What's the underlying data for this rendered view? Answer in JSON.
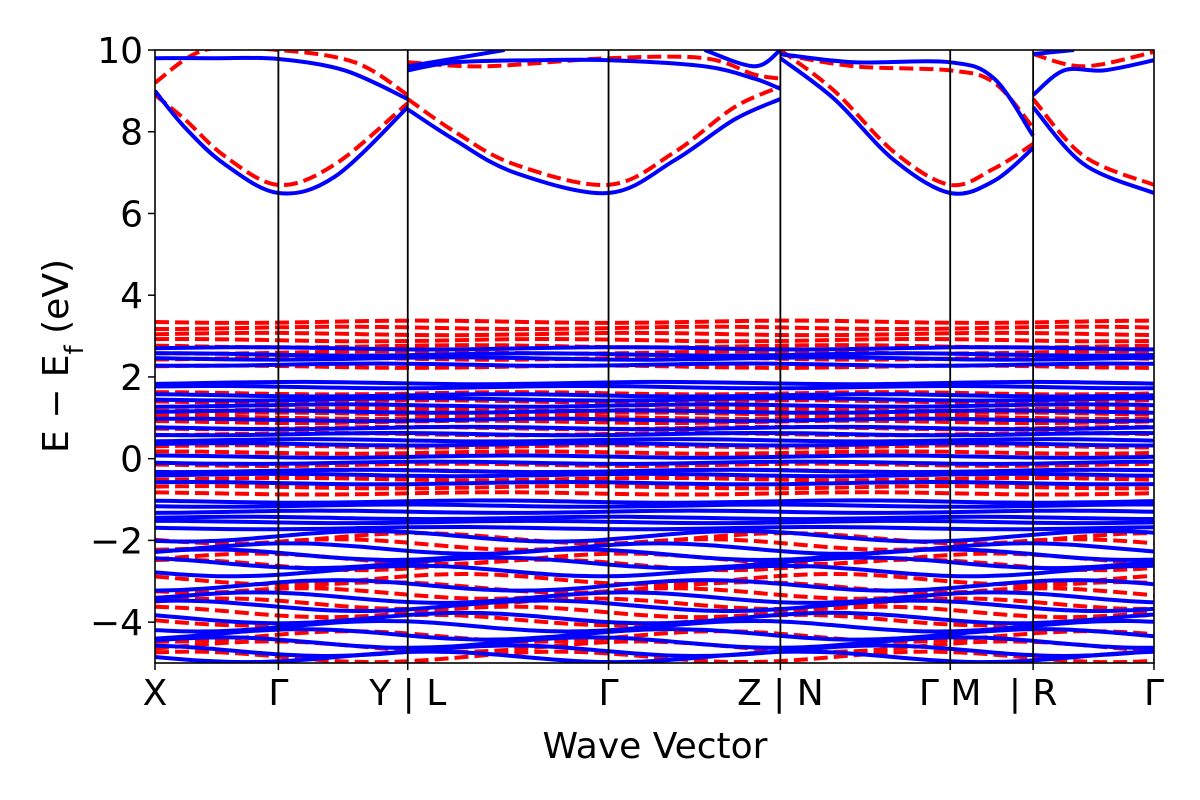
{
  "chart_data": {
    "type": "line",
    "title": "",
    "xlabel": "Wave Vector",
    "ylabel": {
      "main": "E − E",
      "sub": "f",
      "unit": " (eV)"
    },
    "ylim": [
      -5,
      10
    ],
    "yticks": [
      {
        "value": -4,
        "label": "−4"
      },
      {
        "value": -2,
        "label": "−2"
      },
      {
        "value": 0,
        "label": "0"
      },
      {
        "value": 2,
        "label": "2"
      },
      {
        "value": 4,
        "label": "4"
      },
      {
        "value": 6,
        "label": "6"
      },
      {
        "value": 8,
        "label": "8"
      },
      {
        "value": 10,
        "label": "10"
      }
    ],
    "xlim": [
      0,
      1
    ],
    "high_symmetry_points": [
      {
        "x": 0.0,
        "label": "X"
      },
      {
        "x": 0.1235,
        "label": "Γ"
      },
      {
        "x": 0.253,
        "label": "Y | L"
      },
      {
        "x": 0.454,
        "label": "Γ"
      },
      {
        "x": 0.626,
        "label": "Z | N"
      },
      {
        "x": 0.796,
        "label": "Γ  M"
      },
      {
        "x": 0.879,
        "label": "| R"
      },
      {
        "x": 1.0,
        "label": "Γ"
      }
    ],
    "segment_boundaries": [
      0.1235,
      0.253,
      0.454,
      0.626,
      0.796,
      0.879
    ],
    "series": [
      {
        "style": "solid",
        "color": "#0000ff"
      },
      {
        "style": "dashed",
        "color": "#ff0000"
      }
    ],
    "blue_conduction_bands": [
      [
        [
          0,
          9.0
        ],
        [
          0.03,
          8.1
        ],
        [
          0.07,
          7.2
        ],
        [
          0.1235,
          6.5
        ],
        [
          0.18,
          6.9
        ],
        [
          0.253,
          8.6
        ]
      ],
      [
        [
          0,
          9.8
        ],
        [
          0.06,
          9.8
        ],
        [
          0.1235,
          9.78
        ],
        [
          0.19,
          9.5
        ],
        [
          0.253,
          8.8
        ]
      ],
      [
        [
          0.253,
          8.55
        ],
        [
          0.3,
          7.8
        ],
        [
          0.36,
          7.0
        ],
        [
          0.454,
          6.5
        ],
        [
          0.52,
          7.3
        ],
        [
          0.58,
          8.3
        ],
        [
          0.626,
          8.8
        ]
      ],
      [
        [
          0.253,
          9.5
        ],
        [
          0.3,
          9.7
        ],
        [
          0.38,
          9.75
        ],
        [
          0.454,
          9.75
        ],
        [
          0.55,
          9.6
        ],
        [
          0.6,
          9.3
        ],
        [
          0.626,
          9.05
        ]
      ],
      [
        [
          0.253,
          9.6
        ],
        [
          0.35,
          10.0
        ]
      ],
      [
        [
          0.55,
          10.0
        ],
        [
          0.6,
          9.6
        ],
        [
          0.626,
          10.0
        ]
      ],
      [
        [
          0.626,
          9.8
        ],
        [
          0.68,
          8.8
        ],
        [
          0.74,
          7.3
        ],
        [
          0.796,
          6.5
        ],
        [
          0.84,
          6.8
        ],
        [
          0.879,
          7.6
        ]
      ],
      [
        [
          0.626,
          9.9
        ],
        [
          0.7,
          9.7
        ],
        [
          0.796,
          9.7
        ],
        [
          0.84,
          9.3
        ],
        [
          0.879,
          7.9
        ]
      ],
      [
        [
          0.879,
          8.6
        ],
        [
          0.93,
          7.2
        ],
        [
          1.0,
          6.5
        ]
      ],
      [
        [
          0.879,
          8.9
        ],
        [
          0.91,
          9.5
        ],
        [
          0.95,
          9.5
        ],
        [
          1.0,
          9.75
        ]
      ],
      [
        [
          0.879,
          9.9
        ],
        [
          0.92,
          10.0
        ]
      ]
    ],
    "red_conduction_bands": [
      [
        [
          0,
          8.9
        ],
        [
          0.03,
          8.3
        ],
        [
          0.07,
          7.4
        ],
        [
          0.1235,
          6.7
        ],
        [
          0.18,
          7.2
        ],
        [
          0.253,
          8.7
        ]
      ],
      [
        [
          0,
          9.2
        ],
        [
          0.05,
          10.0
        ],
        [
          0.1235,
          10.0
        ],
        [
          0.2,
          9.7
        ],
        [
          0.253,
          8.9
        ]
      ],
      [
        [
          0.253,
          8.8
        ],
        [
          0.3,
          8.0
        ],
        [
          0.36,
          7.2
        ],
        [
          0.454,
          6.7
        ],
        [
          0.52,
          7.5
        ],
        [
          0.58,
          8.6
        ],
        [
          0.626,
          9.1
        ]
      ],
      [
        [
          0.253,
          9.7
        ],
        [
          0.33,
          9.6
        ],
        [
          0.454,
          9.8
        ],
        [
          0.55,
          9.8
        ],
        [
          0.6,
          9.4
        ],
        [
          0.626,
          9.3
        ]
      ],
      [
        [
          0.626,
          10.0
        ],
        [
          0.68,
          9.0
        ],
        [
          0.74,
          7.5
        ],
        [
          0.796,
          6.7
        ],
        [
          0.84,
          7.1
        ],
        [
          0.879,
          7.7
        ]
      ],
      [
        [
          0.626,
          9.9
        ],
        [
          0.7,
          9.6
        ],
        [
          0.796,
          9.5
        ],
        [
          0.84,
          9.2
        ],
        [
          0.879,
          8.1
        ]
      ],
      [
        [
          0.879,
          8.8
        ],
        [
          0.93,
          7.4
        ],
        [
          1.0,
          6.7
        ]
      ],
      [
        [
          0.879,
          9.9
        ],
        [
          0.93,
          9.6
        ],
        [
          1.0,
          9.95
        ]
      ]
    ],
    "blue_valence_levels": [
      2.7,
      2.55,
      2.45,
      2.3,
      1.85,
      1.75,
      1.55,
      1.45,
      1.3,
      1.15,
      0.95,
      0.75,
      0.6,
      0.45,
      0.35,
      0.05,
      -0.1,
      -0.3,
      -0.4,
      -0.6,
      -1.05,
      -1.15,
      -1.3,
      -1.45,
      -1.55,
      -1.7,
      -1.9,
      -2.2,
      -2.35,
      -2.55,
      -2.75,
      -3.1,
      -3.4,
      -3.6,
      -3.9,
      -4.1,
      -4.3,
      -4.5,
      -4.7,
      -4.85
    ],
    "red_valence_levels": [
      3.35,
      3.2,
      3.05,
      2.9,
      2.75,
      2.6,
      2.45,
      2.25,
      1.6,
      1.4,
      1.2,
      1.1,
      1.0,
      0.9,
      0.75,
      0.6,
      0.3,
      0.15,
      -0.15,
      -0.3,
      -0.5,
      -0.7,
      -0.85,
      -1.95,
      -2.1,
      -2.45,
      -2.6,
      -2.95,
      -3.15,
      -3.3,
      -3.55,
      -3.75,
      -3.95,
      -4.35,
      -4.6,
      -4.85
    ]
  }
}
